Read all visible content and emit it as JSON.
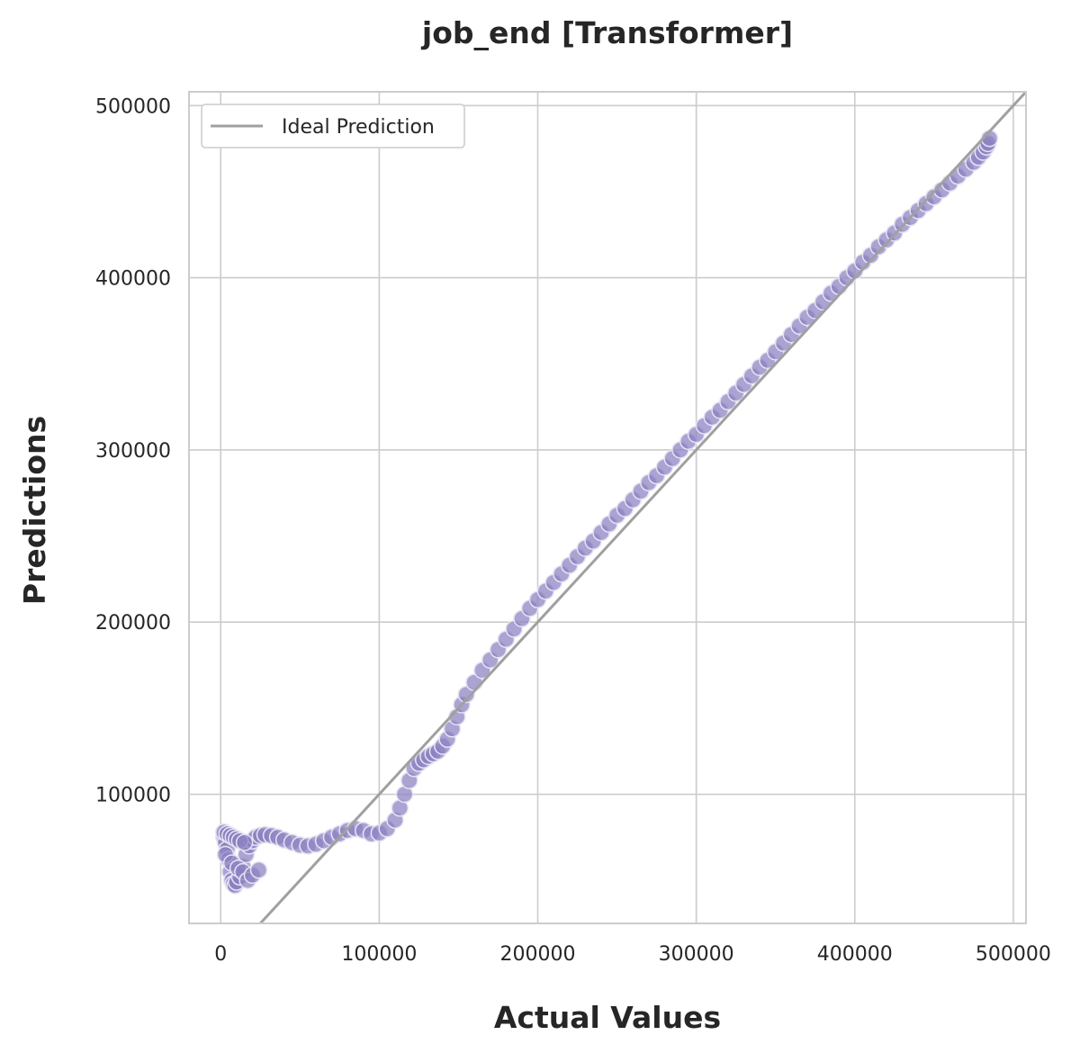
{
  "chart_data": {
    "type": "scatter",
    "title": "job_end [Transformer]",
    "xlabel": "Actual Values",
    "ylabel": "Predictions",
    "xlim": [
      -20000,
      508000
    ],
    "ylim": [
      25000,
      508000
    ],
    "xticks": [
      0,
      100000,
      200000,
      300000,
      400000,
      500000
    ],
    "xtick_labels": [
      "0",
      "100000",
      "200000",
      "300000",
      "400000",
      "500000"
    ],
    "yticks": [
      100000,
      200000,
      300000,
      400000,
      500000
    ],
    "ytick_labels": [
      "100000",
      "200000",
      "300000",
      "400000",
      "500000"
    ],
    "grid": true,
    "legend": {
      "placement": "top-left",
      "entries": [
        "Ideal Prediction"
      ]
    },
    "ideal_line": {
      "name": "Ideal Prediction",
      "color": "#a0a0a0",
      "slope": 1,
      "intercept": 0
    },
    "point_color": "#8b80c0",
    "point_edge_color": "#e6e3f2",
    "series": [
      {
        "x": [
          2000,
          3000,
          4000,
          5000,
          6000,
          7000,
          8000,
          9000,
          10000,
          12000,
          14000,
          16000,
          18000,
          20000,
          22000,
          25000,
          28000,
          32000,
          36000,
          40000,
          45000,
          50000,
          55000,
          60000,
          65000,
          70000,
          75000,
          80000,
          85000,
          90000,
          95000,
          100000,
          105000,
          110000,
          113000,
          116000,
          119000,
          122000,
          125000,
          128000,
          131000,
          134000,
          137000,
          140000,
          143000,
          146000,
          149000,
          152000,
          155000,
          160000,
          165000,
          170000,
          175000,
          180000,
          185000,
          190000,
          195000,
          200000,
          205000,
          210000,
          215000,
          220000,
          225000,
          230000,
          235000,
          240000,
          245000,
          250000,
          255000,
          260000,
          265000,
          270000,
          275000,
          280000,
          285000,
          290000,
          295000,
          300000,
          305000,
          310000,
          315000,
          320000,
          325000,
          330000,
          335000,
          340000,
          345000,
          350000,
          355000,
          360000,
          365000,
          370000,
          375000,
          380000,
          385000,
          390000,
          395000,
          400000,
          405000,
          410000,
          415000,
          420000,
          425000,
          430000,
          435000,
          440000,
          445000,
          450000,
          455000,
          460000,
          465000,
          470000,
          475000,
          478000,
          481000,
          483000,
          484000,
          485000,
          2000,
          4000,
          6000,
          8000,
          10000,
          12000,
          15000,
          3000,
          7000,
          11000,
          14000,
          17000,
          20000,
          24000
        ],
        "y": [
          75000,
          72000,
          68000,
          62000,
          55000,
          50000,
          48000,
          47000,
          49000,
          52000,
          58000,
          65000,
          70000,
          73000,
          75000,
          76000,
          76500,
          76000,
          75000,
          73500,
          72000,
          70500,
          70000,
          71000,
          73000,
          75000,
          77000,
          79000,
          80000,
          79000,
          77000,
          77500,
          80000,
          85000,
          92000,
          100000,
          108000,
          115000,
          118000,
          120000,
          122000,
          123500,
          125000,
          128000,
          132000,
          138000,
          145000,
          152000,
          158000,
          165000,
          172000,
          178000,
          184000,
          190000,
          196000,
          202000,
          208000,
          213000,
          218000,
          223000,
          228000,
          233000,
          238000,
          243000,
          247000,
          252000,
          257000,
          262000,
          266000,
          271000,
          276000,
          281000,
          285000,
          290000,
          295000,
          300000,
          305000,
          309000,
          314000,
          319000,
          323000,
          328000,
          333000,
          338000,
          343000,
          348000,
          352000,
          357000,
          362000,
          367000,
          372000,
          377000,
          381000,
          386000,
          391000,
          395000,
          400000,
          404000,
          409000,
          413000,
          418000,
          422000,
          426000,
          431000,
          435000,
          439000,
          443000,
          447000,
          451000,
          455000,
          459000,
          463000,
          467000,
          470000,
          473000,
          476000,
          478000,
          481000,
          78000,
          77000,
          76000,
          75000,
          74000,
          73000,
          72000,
          65000,
          60000,
          57000,
          55000,
          50000,
          53000,
          56000
        ]
      }
    ]
  }
}
